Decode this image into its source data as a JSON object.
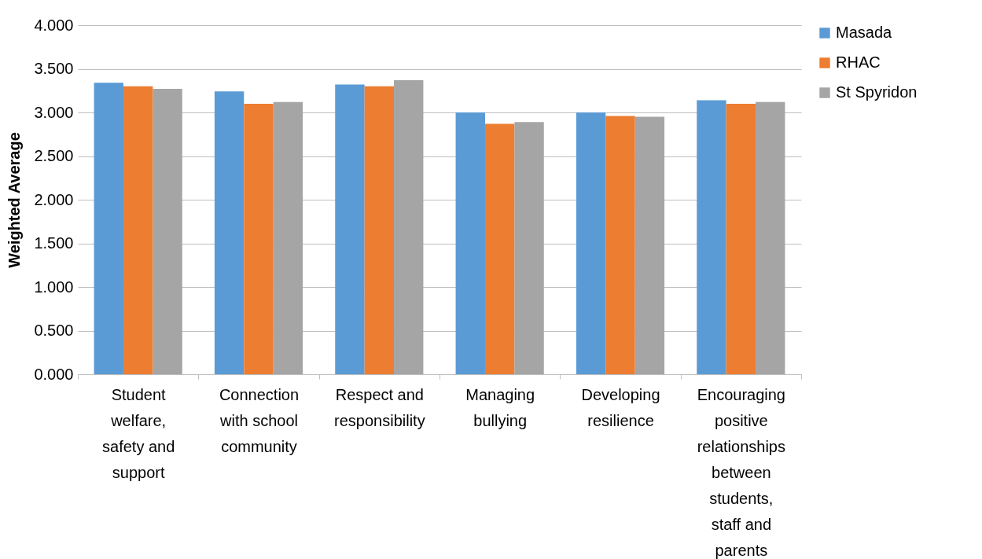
{
  "chart_data": {
    "type": "bar",
    "ylabel": "Weighted Average",
    "categories": [
      "Student welfare, safety and support",
      "Connection with school community",
      "Respect and responsibility",
      "Managing bullying",
      "Developing resilience",
      "Encouraging positive relationships between students, staff and parents"
    ],
    "series": [
      {
        "name": "Masada",
        "color": "#5b9bd5",
        "values": [
          3.34,
          3.24,
          3.32,
          3.0,
          3.0,
          3.14
        ]
      },
      {
        "name": "RHAC",
        "color": "#ed7d31",
        "values": [
          3.3,
          3.1,
          3.3,
          2.87,
          2.96,
          3.1
        ]
      },
      {
        "name": "St Spyridon",
        "color": "#a5a5a5",
        "values": [
          3.27,
          3.12,
          3.37,
          2.89,
          2.95,
          3.12
        ]
      }
    ],
    "ylim": [
      0,
      4
    ],
    "yticks": [
      {
        "value": 0,
        "label": "0.000"
      },
      {
        "value": 0.5,
        "label": "0.500"
      },
      {
        "value": 1,
        "label": "1.000"
      },
      {
        "value": 1.5,
        "label": "1.500"
      },
      {
        "value": 2,
        "label": "2.000"
      },
      {
        "value": 2.5,
        "label": "2.500"
      },
      {
        "value": 3,
        "label": "3.000"
      },
      {
        "value": 3.5,
        "label": "3.500"
      },
      {
        "value": 4,
        "label": "4.000"
      }
    ],
    "grid": "y",
    "legend": "right"
  }
}
